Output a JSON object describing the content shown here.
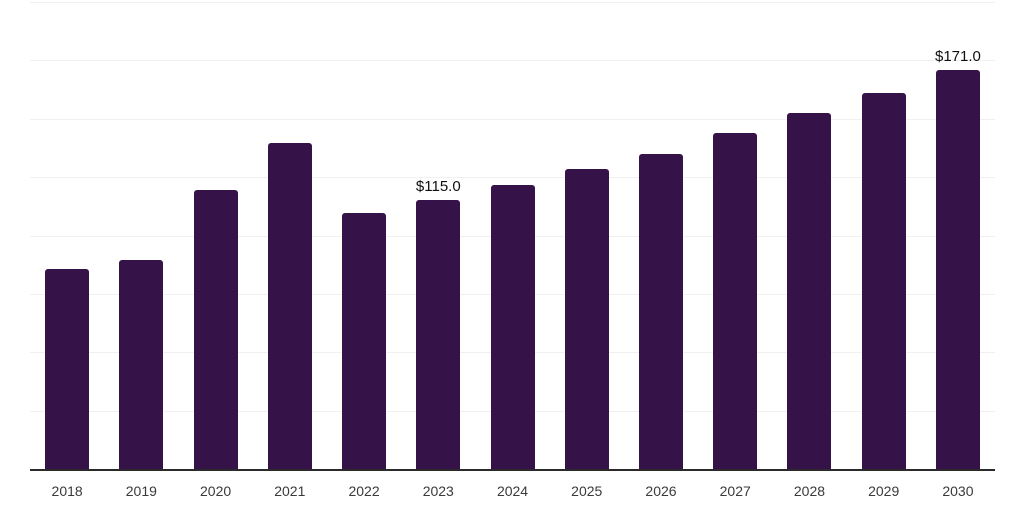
{
  "chart_data": {
    "type": "bar",
    "title": "",
    "xlabel": "",
    "ylabel": "",
    "categories": [
      "2018",
      "2019",
      "2020",
      "2021",
      "2022",
      "2023",
      "2024",
      "2025",
      "2026",
      "2027",
      "2028",
      "2029",
      "2030"
    ],
    "values": [
      85.5,
      89.5,
      119.5,
      139.5,
      109.5,
      115.0,
      121.5,
      128.5,
      135.0,
      144.0,
      152.5,
      161.0,
      171.0
    ],
    "data_labels": {
      "2023": "$115.0",
      "2030": "$171.0"
    },
    "ylim": [
      0,
      200
    ],
    "gridline_step": 25,
    "grid": true,
    "legend": false,
    "colors": {
      "bar": "#351349",
      "axis": "#2b2b2b",
      "gridline": "#f0f0f0",
      "tick_label": "#3a3a3a",
      "data_label": "#0f0f0f",
      "background": "#ffffff"
    }
  }
}
